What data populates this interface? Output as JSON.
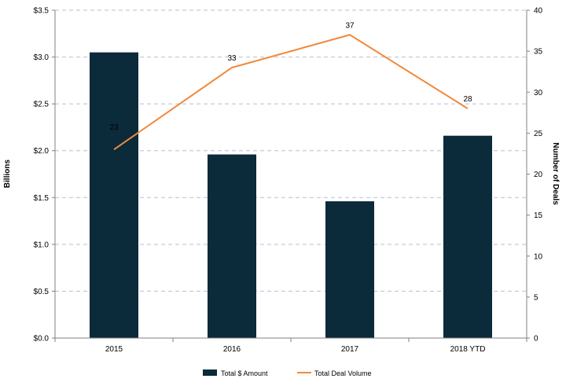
{
  "chart_data": {
    "type": "bar+line",
    "categories": [
      "2015",
      "2016",
      "2017",
      "2018 YTD"
    ],
    "series": [
      {
        "name": "Total $ Amount",
        "type": "bar",
        "axis": "left",
        "values": [
          3.05,
          1.96,
          1.46,
          2.16
        ],
        "color": "#0b2a3a"
      },
      {
        "name": "Total Deal Volume",
        "type": "line",
        "axis": "right",
        "values": [
          23,
          33,
          37,
          28
        ],
        "labels": [
          "23",
          "33",
          "37",
          "28"
        ],
        "color": "#f08a3c"
      }
    ],
    "ylabel_left": "Billions",
    "ylabel_right": "Number of Deals",
    "ylim_left": [
      0,
      3.5
    ],
    "ylim_right": [
      0,
      40
    ],
    "yticks_left": [
      "$0.0",
      "$0.5",
      "$1.0",
      "$1.5",
      "$2.0",
      "$2.5",
      "$3.0",
      "$3.5"
    ],
    "yticks_right": [
      "0",
      "5",
      "10",
      "15",
      "20",
      "25",
      "30",
      "35",
      "40"
    ],
    "grid": true,
    "legend_position": "bottom"
  }
}
